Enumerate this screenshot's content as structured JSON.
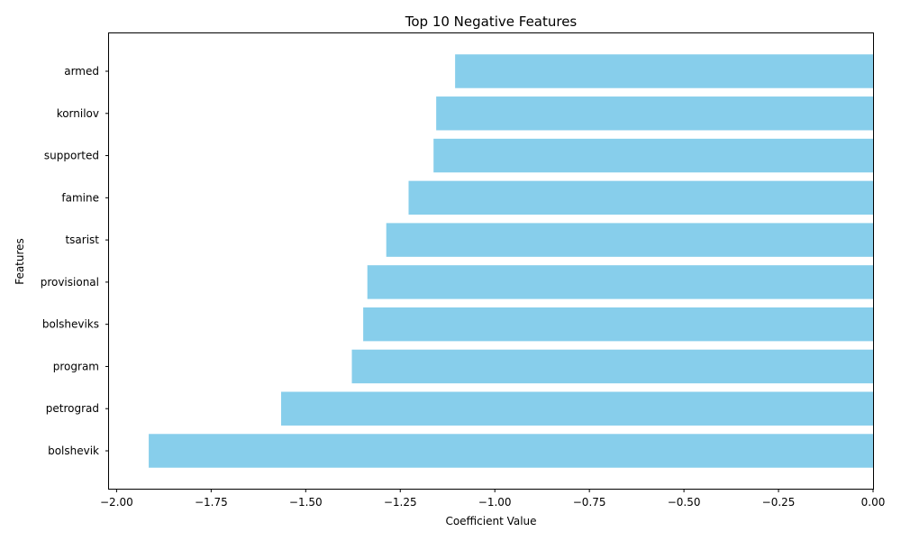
{
  "chart_data": {
    "type": "bar",
    "orientation": "horizontal",
    "title": "Top 10 Negative Features",
    "xlabel": "Coefficient Value",
    "ylabel": "Features",
    "categories": [
      "bolshevik",
      "petrograd",
      "program",
      "bolsheviks",
      "provisional",
      "tsarist",
      "famine",
      "supported",
      "kornilov",
      "armed"
    ],
    "values": [
      -1.915,
      -1.565,
      -1.378,
      -1.348,
      -1.337,
      -1.287,
      -1.228,
      -1.162,
      -1.155,
      -1.105
    ],
    "xlim": [
      -2.02,
      0.0
    ],
    "xticks": [
      "−2.00",
      "−1.75",
      "−1.50",
      "−1.25",
      "−1.00",
      "−0.75",
      "−0.50",
      "−0.25",
      "0.00"
    ],
    "xtick_values": [
      -2.0,
      -1.75,
      -1.5,
      -1.25,
      -1.0,
      -0.75,
      -0.5,
      -0.25,
      0.0
    ],
    "grid": false,
    "legend": "none",
    "bar_color": "#87ceeb"
  }
}
